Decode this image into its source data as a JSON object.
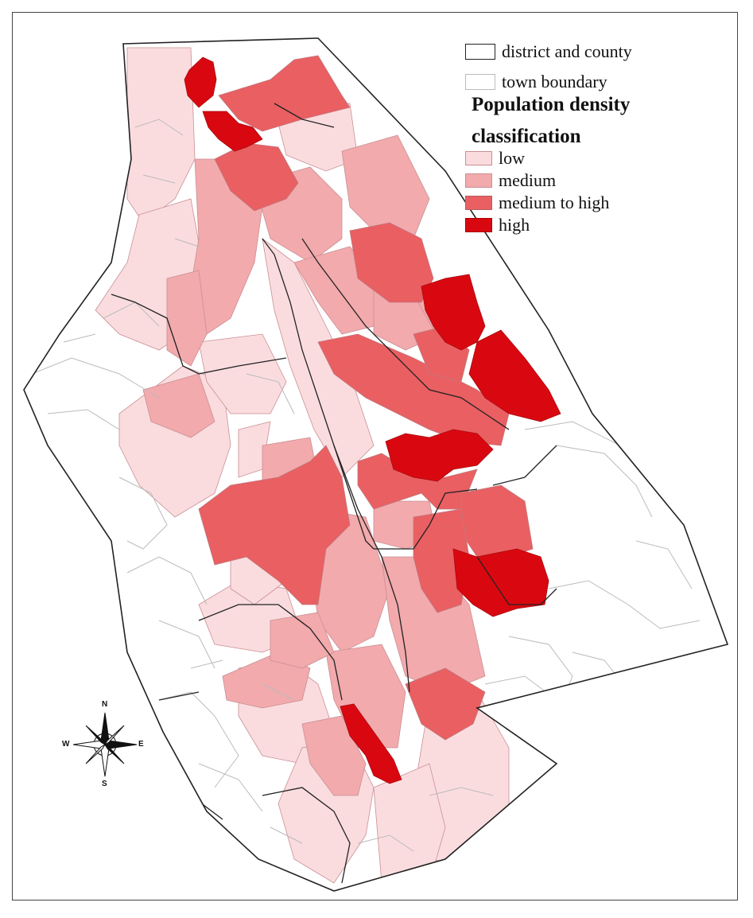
{
  "legend": {
    "boundaries": [
      {
        "label": "district and county",
        "stroke": "#222222"
      },
      {
        "label": "town boundary",
        "stroke": "#bbbbbb"
      }
    ],
    "title": "Population density classification",
    "classes": [
      {
        "key": "low",
        "label": "low",
        "color": "#fadcdf"
      },
      {
        "key": "medium",
        "label": "medium",
        "color": "#f2aaad"
      },
      {
        "key": "medium_high",
        "label": "medium to high",
        "color": "#e95f62"
      },
      {
        "key": "high",
        "label": "high",
        "color": "#d90810"
      }
    ]
  },
  "compass": {
    "n": "N",
    "s": "S",
    "e": "E",
    "w": "W",
    "icon": "compass-rose-icon"
  }
}
